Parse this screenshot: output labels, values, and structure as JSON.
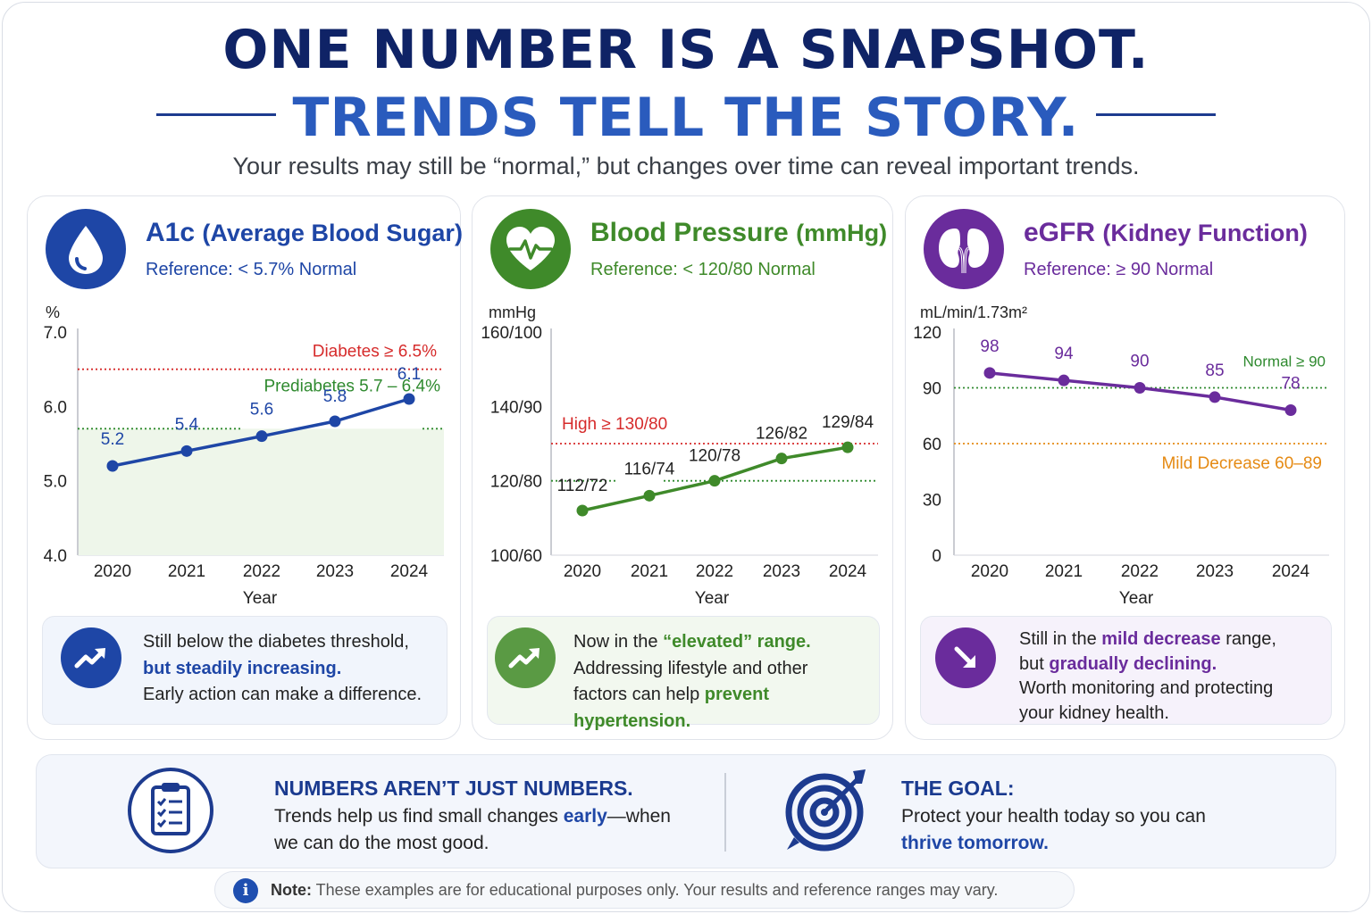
{
  "header": {
    "line1": "ONE NUMBER IS A SNAPSHOT.",
    "line2": "TRENDS TELL THE STORY.",
    "subtitle": "Your results may still be “normal,” but changes over time can reveal important trends."
  },
  "colors": {
    "navy": "#0f2366",
    "blue": "#2a5bbd",
    "a1c": "#1e46a6",
    "bp": "#3f8a2a",
    "egfr": "#6a2c9c",
    "red": "#d62b2b",
    "orange": "#e58a13",
    "green": "#2f8a2f"
  },
  "cards": [
    {
      "title": "A1c",
      "title_unit": "(Average Blood Sugar)",
      "reference": "Reference: < 5.7% Normal",
      "icon": "water-drop-icon",
      "note": {
        "icon": "trend-up-icon",
        "line1": "Still below the diabetes threshold,",
        "line2": "but steadily increasing.",
        "line3": "Early action can make a difference."
      }
    },
    {
      "title": "Blood Pressure",
      "title_unit": "(mmHg)",
      "reference": "Reference: < 120/80 Normal",
      "icon": "heart-pulse-icon",
      "note": {
        "icon": "trend-up-icon",
        "pre1": "Now in the ",
        "hl1": "“elevated” range.",
        "line2": "Addressing lifestyle and other",
        "pre3": "factors can help ",
        "hl3": "prevent hypertension."
      }
    },
    {
      "title": "eGFR",
      "title_unit": "(Kidney Function)",
      "reference": "Reference: ≥ 90 Normal",
      "icon": "kidneys-icon",
      "note": {
        "icon": "trend-down-icon",
        "pre1": "Still in the ",
        "hl1": "mild decrease",
        "post1": " range,",
        "pre2": "but ",
        "hl2": "gradually declining.",
        "line3": "Worth monitoring and protecting",
        "line4": "your kidney health."
      }
    }
  ],
  "chart_data": [
    {
      "type": "line",
      "ylabel": "%",
      "xlabel": "Year",
      "x": [
        "2020",
        "2021",
        "2022",
        "2023",
        "2024"
      ],
      "values": [
        5.2,
        5.4,
        5.6,
        5.8,
        6.1
      ],
      "point_labels": [
        "5.2",
        "5.4",
        "5.6",
        "5.8",
        "6.1"
      ],
      "ylim": [
        4.0,
        7.0
      ],
      "yticks": [
        "4.0",
        "5.0",
        "6.0",
        "7.0"
      ],
      "thresholds": [
        {
          "value": 6.5,
          "label": "Diabetes ≥ 6.5%",
          "color": "#d62b2b"
        },
        {
          "value": 5.7,
          "label": "Prediabetes 5.7 – 6.4%",
          "color": "#2f8a2f"
        }
      ]
    },
    {
      "type": "line",
      "ylabel": "mmHg",
      "xlabel": "Year",
      "x": [
        "2020",
        "2021",
        "2022",
        "2023",
        "2024"
      ],
      "values": [
        112,
        116,
        120,
        126,
        129
      ],
      "point_labels": [
        "112/72",
        "116/74",
        "120/78",
        "126/82",
        "129/84"
      ],
      "ylim": [
        100,
        160
      ],
      "yticks": [
        "100/60",
        "120/80",
        "140/90",
        "160/100"
      ],
      "thresholds": [
        {
          "value": 130,
          "label": "High ≥ 130/80",
          "color": "#d62b2b"
        },
        {
          "value": 120,
          "label": "",
          "color": "#2f8a2f"
        }
      ]
    },
    {
      "type": "line",
      "ylabel": "mL/min/1.73m²",
      "xlabel": "Year",
      "x": [
        "2020",
        "2021",
        "2022",
        "2023",
        "2024"
      ],
      "values": [
        98,
        94,
        90,
        85,
        78
      ],
      "point_labels": [
        "98",
        "94",
        "90",
        "85",
        "78"
      ],
      "ylim": [
        0,
        120
      ],
      "yticks": [
        "0",
        "30",
        "60",
        "90",
        "120"
      ],
      "thresholds": [
        {
          "value": 90,
          "label": "Normal ≥ 90",
          "color": "#2f8a2f"
        },
        {
          "value": 60,
          "label": "Mild Decrease 60–89",
          "color": "#e58a13"
        }
      ]
    }
  ],
  "bottom": {
    "left": {
      "icon": "clipboard-checklist-icon",
      "heading": "NUMBERS AREN’T JUST NUMBERS.",
      "pre": "Trends help us find small changes ",
      "hl": "early",
      "post": "—when",
      "line2": "we can do the most good."
    },
    "right": {
      "icon": "target-arrow-icon",
      "heading": "THE GOAL:",
      "line1": "Protect your health today so you can",
      "hl": "thrive tomorrow."
    }
  },
  "footer": {
    "icon": "info-icon",
    "bold": "Note:",
    "text": " These examples are for educational purposes only. Your results and reference ranges may vary."
  }
}
